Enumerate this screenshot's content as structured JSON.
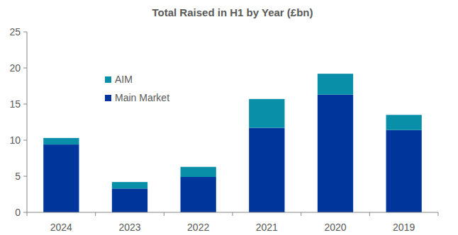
{
  "chart_data": {
    "type": "bar",
    "title": "Total Raised in H1 by Year (£bn)",
    "categories": [
      "2024",
      "2023",
      "2022",
      "2021",
      "2020",
      "2019"
    ],
    "series": [
      {
        "name": "Main Market",
        "color": "#00359c",
        "values": [
          9.4,
          3.3,
          4.9,
          11.7,
          16.3,
          11.4
        ]
      },
      {
        "name": "AIM",
        "color": "#0a8fa8",
        "values": [
          0.9,
          0.9,
          1.4,
          4.0,
          2.9,
          2.1
        ]
      }
    ],
    "stacked": true,
    "legend": "upper left",
    "ylim": [
      0,
      25
    ],
    "yticks": [
      0,
      5,
      10,
      15,
      20,
      25
    ],
    "grid": false
  }
}
